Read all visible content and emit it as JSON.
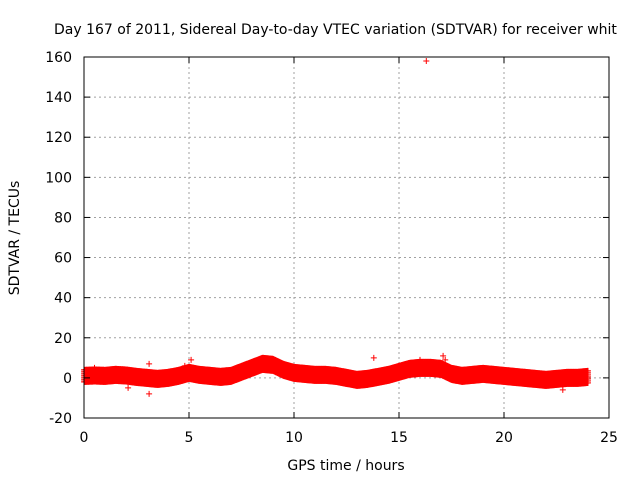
{
  "chart_data": {
    "type": "scatter",
    "title": "Day 167 of 2011, Sidereal Day-to-day VTEC variation (SDTVAR) for receiver whit",
    "xlabel": "GPS time / hours",
    "ylabel": "SDTVAR / TECUs",
    "xlim": [
      0,
      25
    ],
    "ylim": [
      -20,
      160
    ],
    "xticks": [
      "0",
      "5",
      "10",
      "15",
      "20",
      "25"
    ],
    "yticks": [
      "-20",
      "0",
      "20",
      "40",
      "60",
      "80",
      "100",
      "120",
      "140",
      "160"
    ],
    "grid": true,
    "marker": "+",
    "color": "#ff0000",
    "series": [
      {
        "name": "SDTVAR",
        "band_center": [
          [
            0.0,
            1.0
          ],
          [
            0.5,
            1.2
          ],
          [
            1.0,
            1.0
          ],
          [
            1.5,
            1.5
          ],
          [
            2.0,
            1.2
          ],
          [
            2.5,
            0.5
          ],
          [
            3.0,
            0.0
          ],
          [
            3.5,
            -0.5
          ],
          [
            4.0,
            0.0
          ],
          [
            4.5,
            1.0
          ],
          [
            5.0,
            2.5
          ],
          [
            5.5,
            1.5
          ],
          [
            6.0,
            1.0
          ],
          [
            6.5,
            0.5
          ],
          [
            7.0,
            1.0
          ],
          [
            7.5,
            3.0
          ],
          [
            8.0,
            5.0
          ],
          [
            8.5,
            7.0
          ],
          [
            9.0,
            6.5
          ],
          [
            9.5,
            4.0
          ],
          [
            10.0,
            2.5
          ],
          [
            10.5,
            2.0
          ],
          [
            11.0,
            1.5
          ],
          [
            11.5,
            1.5
          ],
          [
            12.0,
            1.0
          ],
          [
            12.5,
            0.0
          ],
          [
            13.0,
            -1.0
          ],
          [
            13.5,
            -0.5
          ],
          [
            14.0,
            0.5
          ],
          [
            14.5,
            1.5
          ],
          [
            15.0,
            3.0
          ],
          [
            15.5,
            4.5
          ],
          [
            16.0,
            5.0
          ],
          [
            16.5,
            5.0
          ],
          [
            17.0,
            4.5
          ],
          [
            17.5,
            2.0
          ],
          [
            18.0,
            1.0
          ],
          [
            18.5,
            1.5
          ],
          [
            19.0,
            2.0
          ],
          [
            19.5,
            1.5
          ],
          [
            20.0,
            1.0
          ],
          [
            20.5,
            0.5
          ],
          [
            21.0,
            0.0
          ],
          [
            21.5,
            -0.5
          ],
          [
            22.0,
            -1.0
          ],
          [
            22.5,
            -0.5
          ],
          [
            23.0,
            0.0
          ],
          [
            23.5,
            0.0
          ],
          [
            24.0,
            0.5
          ]
        ],
        "band_halfwidth": 3,
        "outliers": [
          [
            16.3,
            158
          ],
          [
            3.1,
            7
          ],
          [
            3.1,
            -8
          ],
          [
            5.1,
            9
          ],
          [
            13.8,
            10
          ],
          [
            17.1,
            11
          ],
          [
            17.2,
            9
          ],
          [
            2.1,
            -5
          ],
          [
            22.8,
            -6
          ],
          [
            0.5,
            5
          ],
          [
            9.0,
            9
          ],
          [
            4.8,
            6
          ],
          [
            16.0,
            9
          ]
        ]
      }
    ]
  }
}
